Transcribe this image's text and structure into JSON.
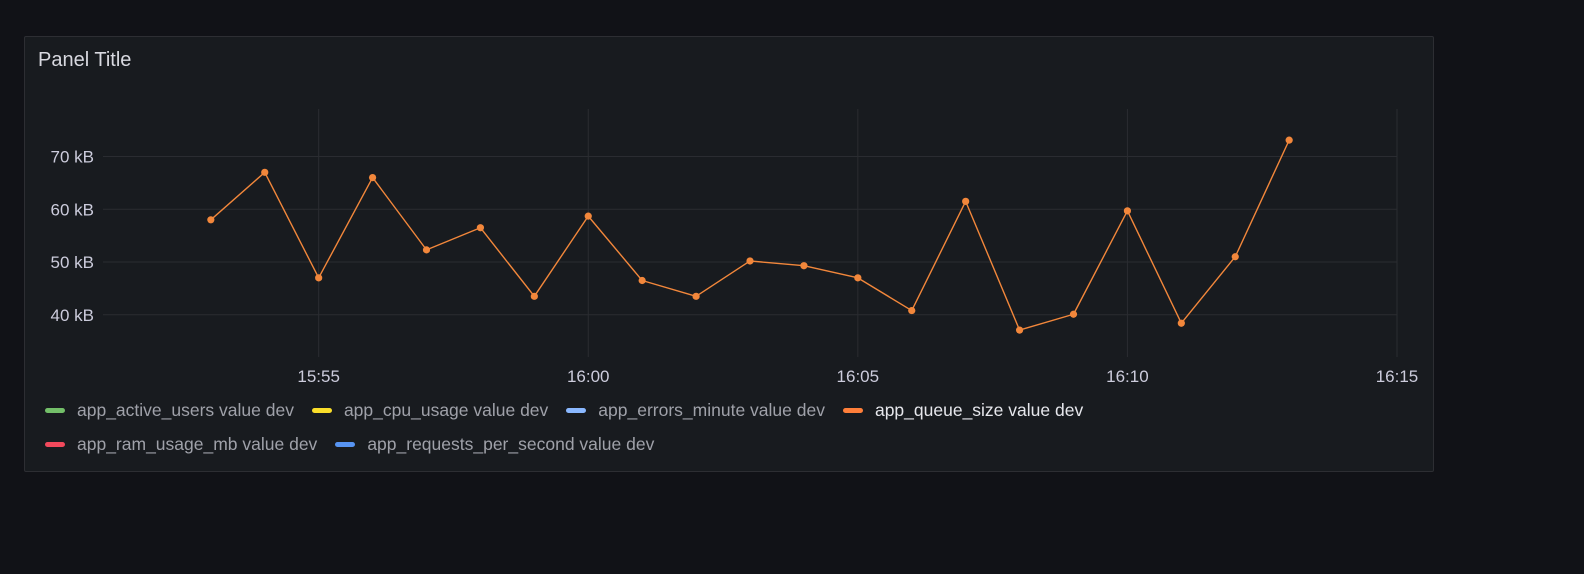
{
  "panel": {
    "title": "Panel Title"
  },
  "colors": {
    "series": "#f2873b"
  },
  "legend": {
    "rows": [
      [
        {
          "label": "app_active_users value dev",
          "color": "#73bf69",
          "active": false
        },
        {
          "label": "app_cpu_usage value dev",
          "color": "#fade2a",
          "active": false
        },
        {
          "label": "app_errors_minute value dev",
          "color": "#8ab8ff",
          "active": false
        },
        {
          "label": "app_queue_size value dev",
          "color": "#ff7f3a",
          "active": true
        }
      ],
      [
        {
          "label": "app_ram_usage_mb value dev",
          "color": "#f2495c",
          "active": false
        },
        {
          "label": "app_requests_per_second value dev",
          "color": "#5794f2",
          "active": false
        }
      ]
    ]
  },
  "chart_data": {
    "type": "line",
    "xlabel": "",
    "ylabel": "",
    "grid": true,
    "y_ticks": [
      "40 kB",
      "50 kB",
      "60 kB",
      "70 kB"
    ],
    "y_tick_values": [
      40,
      50,
      60,
      70
    ],
    "ylim": [
      32,
      79
    ],
    "x_ticks": [
      "15:55",
      "16:00",
      "16:05",
      "16:10",
      "16:15"
    ],
    "x_tick_values": [
      "15:55",
      "16:00",
      "16:05",
      "16:10",
      "16:15"
    ],
    "xlim": [
      "15:51",
      "16:15"
    ],
    "series": [
      {
        "name": "app_queue_size value dev",
        "color": "#f2873b",
        "x": [
          "15:53",
          "15:54",
          "15:55",
          "15:56",
          "15:57",
          "15:58",
          "15:59",
          "16:00",
          "16:01",
          "16:02",
          "16:03",
          "16:04",
          "16:05",
          "16:06",
          "16:07",
          "16:08",
          "16:09",
          "16:10",
          "16:11",
          "16:12",
          "16:13"
        ],
        "values": [
          58,
          67,
          47,
          66,
          52.3,
          56.5,
          43.5,
          58.7,
          46.5,
          43.5,
          50.2,
          49.3,
          47,
          40.8,
          61.5,
          37.1,
          40.1,
          59.7,
          38.4,
          51,
          73.1
        ]
      }
    ]
  }
}
